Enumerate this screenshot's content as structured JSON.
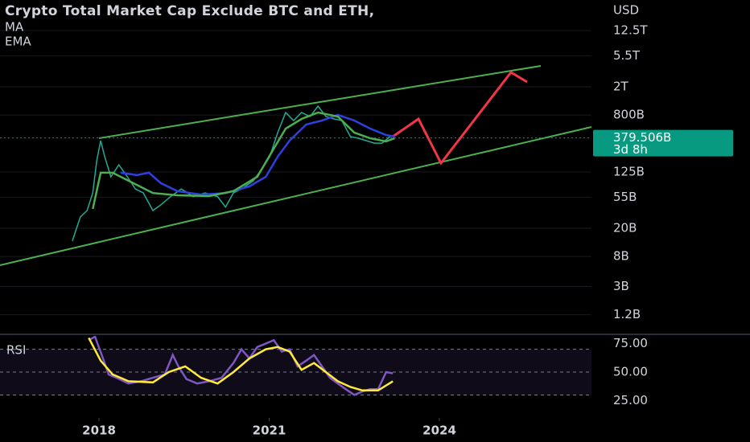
{
  "chart_data": [
    {
      "type": "line",
      "title": "Crypto Total Market Cap Exclude BTC and ETH,",
      "y_label": "USD",
      "log_scale": true,
      "grid": true,
      "xlim": [
        2016.255,
        2026.68
      ],
      "xticks": [
        2018,
        2021,
        2024
      ],
      "ylim": [
        0.65,
        33800
      ],
      "yticks": [
        {
          "value": 12500,
          "label": "12.5T"
        },
        {
          "value": 5500,
          "label": "5.5T"
        },
        {
          "value": 2000,
          "label": "2T"
        },
        {
          "value": 800,
          "label": "800B"
        },
        {
          "value": 125,
          "label": "125B"
        },
        {
          "value": 55,
          "label": "55B"
        },
        {
          "value": 20,
          "label": "20B"
        },
        {
          "value": 8,
          "label": "8B"
        },
        {
          "value": 3,
          "label": "3B"
        },
        {
          "value": 1.2,
          "label": "1.2B"
        }
      ],
      "last_value": {
        "value": 379.506,
        "label": "379.506B",
        "countdown": "3d 8h",
        "color": "#089981"
      },
      "series": [
        {
          "color": "#22ab94",
          "x": [
            2017.53,
            2017.67,
            2017.79,
            2017.89,
            2017.96,
            2018.03,
            2018.1,
            2018.21,
            2018.35,
            2018.5,
            2018.64,
            2018.78,
            2018.95,
            2019.09,
            2019.26,
            2019.45,
            2019.66,
            2019.87,
            2020.09,
            2020.23,
            2020.37,
            2020.51,
            2020.72,
            2020.87,
            2021.01,
            2021.15,
            2021.29,
            2021.43,
            2021.57,
            2021.72,
            2021.86,
            2022.0,
            2022.14,
            2022.28,
            2022.43,
            2022.57,
            2022.71,
            2022.85,
            2022.99,
            2023.13
          ],
          "values": [
            13.2,
            28.9,
            35.6,
            63.4,
            180,
            347,
            206,
            107,
            158,
            107,
            72,
            63.4,
            35.6,
            43,
            56,
            72,
            56,
            63.4,
            56,
            40,
            63.4,
            72,
            94,
            139,
            206,
            451,
            867,
            667,
            867,
            760,
            1069,
            760,
            703,
            667,
            395,
            375,
            347,
            320,
            320,
            395
          ]
        },
        {
          "name": "MA",
          "color": "#2f3fe0",
          "x": [
            2018.38,
            2018.67,
            2018.88,
            2019.09,
            2019.38,
            2019.8,
            2020.23,
            2020.65,
            2020.94,
            2021.15,
            2021.36,
            2021.65,
            2021.93,
            2022.21,
            2022.5,
            2022.78,
            2023.06,
            2023.21
          ],
          "values": [
            122,
            113,
            122,
            87,
            67,
            60,
            63,
            78,
            107,
            206,
            347,
            585,
            667,
            801,
            667,
            514,
            417,
            395
          ]
        },
        {
          "name": "EMA",
          "color": "#4caf50",
          "x": [
            2017.89,
            2018.03,
            2018.24,
            2018.52,
            2018.95,
            2019.38,
            2019.94,
            2020.37,
            2020.79,
            2021.08,
            2021.29,
            2021.57,
            2021.86,
            2022.21,
            2022.5,
            2022.78,
            2023.06,
            2023.21
          ],
          "values": [
            37.5,
            122,
            122,
            94,
            63,
            58.5,
            57,
            67,
            107,
            267,
            514,
            703,
            867,
            760,
            451,
            375,
            338,
            375
          ]
        }
      ]
    },
    {
      "type": "line",
      "title": "RSI",
      "ylim": [
        9.9,
        81.7
      ],
      "yticks": [
        {
          "value": 75,
          "label": "75.00"
        },
        {
          "value": 50,
          "label": "50.00"
        },
        {
          "value": 25,
          "label": "25.00"
        }
      ],
      "band": [
        30,
        70
      ],
      "series": [
        {
          "color": "#7e57c2",
          "x": [
            2017.82,
            2017.93,
            2018.07,
            2018.17,
            2018.31,
            2018.52,
            2018.74,
            2018.95,
            2019.16,
            2019.3,
            2019.4,
            2019.54,
            2019.73,
            2019.94,
            2020.16,
            2020.37,
            2020.51,
            2020.65,
            2020.79,
            2020.94,
            2021.08,
            2021.22,
            2021.36,
            2021.5,
            2021.65,
            2021.79,
            2021.93,
            2022.07,
            2022.21,
            2022.35,
            2022.5,
            2022.64,
            2022.78,
            2022.92,
            2023.06,
            2023.18
          ],
          "values": [
            78,
            81,
            62,
            48,
            45,
            40,
            42,
            45,
            48,
            65,
            55,
            44,
            40,
            42,
            45,
            58,
            70,
            62,
            72,
            75,
            78,
            68,
            70,
            55,
            60,
            65,
            55,
            45,
            40,
            35,
            30,
            33,
            35,
            35,
            50,
            49
          ]
        },
        {
          "color": "#ffeb3b",
          "x": [
            2017.82,
            2018.03,
            2018.24,
            2018.52,
            2018.95,
            2019.23,
            2019.52,
            2019.8,
            2020.09,
            2020.37,
            2020.65,
            2020.94,
            2021.15,
            2021.36,
            2021.57,
            2021.79,
            2022.0,
            2022.21,
            2022.43,
            2022.64,
            2022.92,
            2023.18
          ],
          "values": [
            80,
            60,
            48,
            42,
            41,
            50,
            55,
            45,
            40,
            50,
            62,
            70,
            72,
            68,
            52,
            58,
            50,
            42,
            37,
            34,
            34,
            42
          ]
        }
      ]
    }
  ]
}
